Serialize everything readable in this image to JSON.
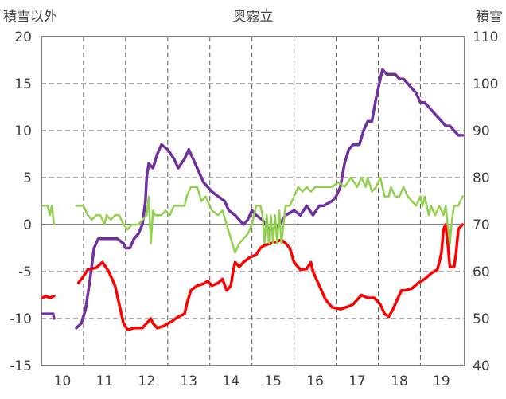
{
  "chart_data": {
    "type": "line",
    "title": "奥霧立",
    "y_left_label": "積雪以外",
    "y_right_label": "積雪",
    "xlim": [
      9.5,
      19.55
    ],
    "ylim_left": [
      -15,
      20
    ],
    "ylim_right": [
      40,
      110
    ],
    "x_ticks": [
      10,
      11,
      12,
      13,
      14,
      15,
      16,
      17,
      18,
      19
    ],
    "y_left_ticks": [
      -15,
      -10,
      -5,
      0,
      5,
      10,
      15,
      20
    ],
    "y_right_ticks": [
      40,
      50,
      60,
      70,
      80,
      90,
      100,
      110
    ],
    "grid": true,
    "legend": "none",
    "series": [
      {
        "color": "#7030a0",
        "axis": "right",
        "points": [
          [
            9.53,
            51
          ],
          [
            9.78,
            51
          ],
          [
            9.8,
            50
          ],
          [
            10.33,
            48
          ],
          [
            10.45,
            49
          ],
          [
            10.55,
            52
          ],
          [
            10.65,
            58
          ],
          [
            10.75,
            65
          ],
          [
            10.85,
            67
          ],
          [
            11.1,
            67
          ],
          [
            11.3,
            67
          ],
          [
            11.45,
            66
          ],
          [
            11.5,
            65
          ],
          [
            11.6,
            65
          ],
          [
            11.7,
            67
          ],
          [
            11.8,
            68
          ],
          [
            11.9,
            70
          ],
          [
            11.97,
            75
          ],
          [
            12.0,
            80
          ],
          [
            12.05,
            83
          ],
          [
            12.15,
            82
          ],
          [
            12.25,
            85
          ],
          [
            12.35,
            87
          ],
          [
            12.5,
            86
          ],
          [
            12.65,
            84
          ],
          [
            12.75,
            82
          ],
          [
            12.9,
            84
          ],
          [
            13.0,
            86
          ],
          [
            13.1,
            84
          ],
          [
            13.2,
            82
          ],
          [
            13.35,
            79
          ],
          [
            13.55,
            77
          ],
          [
            13.7,
            76
          ],
          [
            13.85,
            75
          ],
          [
            13.95,
            73
          ],
          [
            14.1,
            72
          ],
          [
            14.3,
            70
          ],
          [
            14.4,
            71
          ],
          [
            14.5,
            73
          ],
          [
            14.6,
            72
          ],
          [
            14.75,
            71
          ],
          [
            14.9,
            69
          ],
          [
            15.0,
            69
          ],
          [
            15.15,
            70
          ],
          [
            15.3,
            72
          ],
          [
            15.5,
            73
          ],
          [
            15.65,
            72
          ],
          [
            15.8,
            74
          ],
          [
            15.95,
            72
          ],
          [
            16.1,
            74
          ],
          [
            16.2,
            74
          ],
          [
            16.4,
            75
          ],
          [
            16.5,
            76
          ],
          [
            16.6,
            78
          ],
          [
            16.7,
            83
          ],
          [
            16.8,
            86
          ],
          [
            16.9,
            87
          ],
          [
            17.05,
            87
          ],
          [
            17.15,
            90
          ],
          [
            17.25,
            92
          ],
          [
            17.35,
            92
          ],
          [
            17.45,
            97
          ],
          [
            17.55,
            101
          ],
          [
            17.6,
            103
          ],
          [
            17.7,
            102
          ],
          [
            17.8,
            102
          ],
          [
            17.9,
            102
          ],
          [
            18.0,
            101
          ],
          [
            18.1,
            101
          ],
          [
            18.2,
            100
          ],
          [
            18.3,
            99
          ],
          [
            18.4,
            98
          ],
          [
            18.5,
            96
          ],
          [
            18.6,
            96
          ],
          [
            18.7,
            95
          ],
          [
            18.8,
            94
          ],
          [
            18.9,
            93
          ],
          [
            19.0,
            92
          ],
          [
            19.1,
            91
          ],
          [
            19.2,
            91
          ],
          [
            19.3,
            90
          ],
          [
            19.4,
            89
          ],
          [
            19.5,
            89
          ]
        ]
      },
      {
        "color": "#ff0000",
        "axis": "left",
        "points": [
          [
            9.53,
            -7.8
          ],
          [
            9.6,
            -7.6
          ],
          [
            9.7,
            -7.8
          ],
          [
            9.8,
            -7.6
          ],
          [
            10.38,
            -6.2
          ],
          [
            10.5,
            -5.5
          ],
          [
            10.6,
            -4.8
          ],
          [
            10.8,
            -4.6
          ],
          [
            10.95,
            -4.0
          ],
          [
            11.1,
            -5.0
          ],
          [
            11.25,
            -6.5
          ],
          [
            11.35,
            -8.5
          ],
          [
            11.45,
            -10.5
          ],
          [
            11.55,
            -11.2
          ],
          [
            11.7,
            -11.0
          ],
          [
            11.9,
            -11.0
          ],
          [
            12.0,
            -10.5
          ],
          [
            12.1,
            -10.0
          ],
          [
            12.15,
            -10.5
          ],
          [
            12.25,
            -11.0
          ],
          [
            12.4,
            -10.8
          ],
          [
            12.6,
            -10.3
          ],
          [
            12.75,
            -9.8
          ],
          [
            12.9,
            -9.5
          ],
          [
            12.95,
            -8.5
          ],
          [
            13.05,
            -7.0
          ],
          [
            13.2,
            -6.5
          ],
          [
            13.35,
            -6.3
          ],
          [
            13.45,
            -6.0
          ],
          [
            13.55,
            -6.5
          ],
          [
            13.7,
            -6.2
          ],
          [
            13.8,
            -5.8
          ],
          [
            13.9,
            -7.0
          ],
          [
            14.0,
            -6.5
          ],
          [
            14.05,
            -5.0
          ],
          [
            14.1,
            -4.0
          ],
          [
            14.2,
            -4.5
          ],
          [
            14.3,
            -4.0
          ],
          [
            14.45,
            -3.5
          ],
          [
            14.6,
            -3.2
          ],
          [
            14.7,
            -2.5
          ],
          [
            14.8,
            -2.2
          ],
          [
            14.95,
            -2.0
          ],
          [
            15.1,
            -1.8
          ],
          [
            15.2,
            -1.6
          ],
          [
            15.3,
            -2.0
          ],
          [
            15.4,
            -2.5
          ],
          [
            15.5,
            -4.0
          ],
          [
            15.65,
            -4.8
          ],
          [
            15.8,
            -4.7
          ],
          [
            15.9,
            -4.0
          ],
          [
            15.95,
            -5.0
          ],
          [
            16.05,
            -6.0
          ],
          [
            16.15,
            -7.0
          ],
          [
            16.25,
            -8.0
          ],
          [
            16.4,
            -8.8
          ],
          [
            16.6,
            -9.0
          ],
          [
            16.8,
            -8.7
          ],
          [
            16.9,
            -8.5
          ],
          [
            17.0,
            -8.0
          ],
          [
            17.1,
            -7.5
          ],
          [
            17.25,
            -7.8
          ],
          [
            17.4,
            -7.8
          ],
          [
            17.55,
            -8.5
          ],
          [
            17.65,
            -9.5
          ],
          [
            17.75,
            -9.8
          ],
          [
            17.85,
            -9.0
          ],
          [
            17.95,
            -8.0
          ],
          [
            18.05,
            -7.0
          ],
          [
            18.15,
            -7.0
          ],
          [
            18.3,
            -6.8
          ],
          [
            18.45,
            -6.2
          ],
          [
            18.6,
            -5.8
          ],
          [
            18.75,
            -5.2
          ],
          [
            18.9,
            -4.8
          ],
          [
            18.95,
            -4.0
          ],
          [
            19.0,
            -3.0
          ],
          [
            19.05,
            -0.5
          ],
          [
            19.1,
            0.0
          ],
          [
            19.15,
            -2.0
          ],
          [
            19.2,
            -4.5
          ],
          [
            19.3,
            -4.5
          ],
          [
            19.35,
            -3.0
          ],
          [
            19.4,
            -0.5
          ],
          [
            19.5,
            0.0
          ]
        ]
      },
      {
        "color": "#92d050",
        "axis": "left",
        "points": [
          [
            9.53,
            2.0
          ],
          [
            9.65,
            2.0
          ],
          [
            9.7,
            1.0
          ],
          [
            9.75,
            2.0
          ],
          [
            9.8,
            0.0
          ],
          [
            10.33,
            2.0
          ],
          [
            10.5,
            2.0
          ],
          [
            10.6,
            1.0
          ],
          [
            10.7,
            0.5
          ],
          [
            10.8,
            1.0
          ],
          [
            10.9,
            1.0
          ],
          [
            11.0,
            0.0
          ],
          [
            11.05,
            1.0
          ],
          [
            11.15,
            0.5
          ],
          [
            11.25,
            1.0
          ],
          [
            11.35,
            1.0
          ],
          [
            11.45,
            0.0
          ],
          [
            11.55,
            -0.5
          ],
          [
            11.65,
            0.0
          ],
          [
            11.8,
            0.0
          ],
          [
            11.9,
            0.5
          ],
          [
            12.0,
            1.0
          ],
          [
            12.05,
            3.0
          ],
          [
            12.1,
            -2.0
          ],
          [
            12.15,
            1.5
          ],
          [
            12.2,
            1.0
          ],
          [
            12.35,
            1.0
          ],
          [
            12.45,
            1.5
          ],
          [
            12.55,
            1.0
          ],
          [
            12.65,
            2.0
          ],
          [
            12.8,
            2.0
          ],
          [
            12.9,
            2.0
          ],
          [
            12.95,
            3.0
          ],
          [
            13.05,
            4.0
          ],
          [
            13.2,
            4.0
          ],
          [
            13.3,
            2.5
          ],
          [
            13.4,
            3.0
          ],
          [
            13.55,
            1.5
          ],
          [
            13.7,
            1.0
          ],
          [
            13.8,
            1.5
          ],
          [
            13.9,
            0.0
          ],
          [
            14.0,
            -1.5
          ],
          [
            14.1,
            -3.0
          ],
          [
            14.2,
            -2.0
          ],
          [
            14.3,
            -1.5
          ],
          [
            14.4,
            -1.0
          ],
          [
            14.5,
            0.0
          ],
          [
            14.6,
            2.0
          ],
          [
            14.7,
            2.0
          ],
          [
            14.75,
            1.0
          ],
          [
            14.8,
            -2.0
          ],
          [
            14.85,
            1.0
          ],
          [
            14.9,
            -2.0
          ],
          [
            14.95,
            1.0
          ],
          [
            15.0,
            -2.0
          ],
          [
            15.05,
            1.0
          ],
          [
            15.1,
            -2.0
          ],
          [
            15.15,
            1.5
          ],
          [
            15.2,
            -2.0
          ],
          [
            15.3,
            2.0
          ],
          [
            15.4,
            2.0
          ],
          [
            15.5,
            3.0
          ],
          [
            15.6,
            4.0
          ],
          [
            15.7,
            3.5
          ],
          [
            15.8,
            4.0
          ],
          [
            15.9,
            3.5
          ],
          [
            16.0,
            4.0
          ],
          [
            16.2,
            4.0
          ],
          [
            16.4,
            4.0
          ],
          [
            16.55,
            4.5
          ],
          [
            16.7,
            4.0
          ],
          [
            16.85,
            5.0
          ],
          [
            17.0,
            4.0
          ],
          [
            17.1,
            5.0
          ],
          [
            17.2,
            4.0
          ],
          [
            17.25,
            5.0
          ],
          [
            17.35,
            3.5
          ],
          [
            17.45,
            4.0
          ],
          [
            17.55,
            5.0
          ],
          [
            17.65,
            3.0
          ],
          [
            17.75,
            3.0
          ],
          [
            17.8,
            4.0
          ],
          [
            17.9,
            3.0
          ],
          [
            18.0,
            3.0
          ],
          [
            18.1,
            4.0
          ],
          [
            18.2,
            3.0
          ],
          [
            18.3,
            2.5
          ],
          [
            18.4,
            2.0
          ],
          [
            18.5,
            3.0
          ],
          [
            18.55,
            2.0
          ],
          [
            18.6,
            3.0
          ],
          [
            18.65,
            2.0
          ],
          [
            18.7,
            1.0
          ],
          [
            18.75,
            2.0
          ],
          [
            18.85,
            1.0
          ],
          [
            18.95,
            2.0
          ],
          [
            19.05,
            1.0
          ],
          [
            19.1,
            2.0
          ],
          [
            19.15,
            0.0
          ],
          [
            19.2,
            -2.0
          ],
          [
            19.25,
            0.5
          ],
          [
            19.3,
            2.0
          ],
          [
            19.4,
            2.0
          ],
          [
            19.45,
            2.5
          ],
          [
            19.5,
            3.0
          ]
        ]
      }
    ]
  }
}
